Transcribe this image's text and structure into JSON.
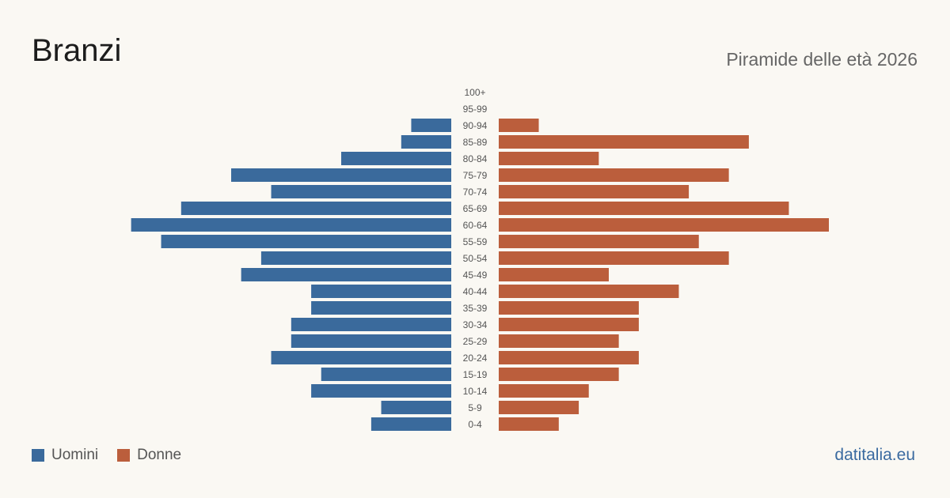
{
  "header": {
    "title": "Branzi",
    "subtitle": "Piramide delle età 2026"
  },
  "legend": {
    "men_label": "Uomini",
    "women_label": "Donne"
  },
  "brand": "datitalia.eu",
  "colors": {
    "men": "#3a6a9c",
    "women": "#bb5e3c",
    "background": "#faf8f3"
  },
  "chart_data": {
    "type": "bar",
    "orientation": "horizontal-pyramid",
    "categories": [
      "100+",
      "95-99",
      "90-94",
      "85-89",
      "80-84",
      "75-79",
      "70-74",
      "65-69",
      "60-64",
      "55-59",
      "50-54",
      "45-49",
      "40-44",
      "35-39",
      "30-34",
      "25-29",
      "20-24",
      "15-19",
      "10-14",
      "5-9",
      "0-4"
    ],
    "series": [
      {
        "name": "Uomini",
        "values": [
          0,
          0,
          4,
          5,
          11,
          22,
          18,
          27,
          32,
          29,
          19,
          21,
          14,
          14,
          16,
          16,
          18,
          13,
          14,
          7,
          8
        ]
      },
      {
        "name": "Donne",
        "values": [
          0,
          0,
          4,
          25,
          10,
          23,
          19,
          29,
          33,
          20,
          23,
          11,
          18,
          14,
          14,
          12,
          14,
          12,
          9,
          8,
          6
        ]
      }
    ],
    "legend_position": "bottom-left",
    "grid": false
  }
}
